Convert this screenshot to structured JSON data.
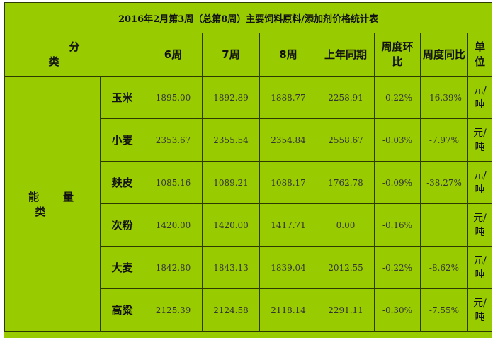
{
  "title": "2016年2月第3周（总第8周）主要饲料原料/添加剂价格统计表",
  "headers": {
    "category": "分类",
    "week6": "6周",
    "week7": "7周",
    "week8": "8周",
    "last_year": "上年同期",
    "wow_line1": "周度环",
    "wow_line2": "比",
    "yoy": "周度同比",
    "unit_line1": "单",
    "unit_line2": "位"
  },
  "group": "能量类",
  "rows": [
    {
      "item": "玉米",
      "w6": "1895.00",
      "w7": "1892.89",
      "w8": "1888.77",
      "last_year": "2258.91",
      "wow": "-0.22%",
      "yoy": "-16.39%",
      "unit_1": "元/",
      "unit_2": "吨"
    },
    {
      "item": "小麦",
      "w6": "2353.67",
      "w7": "2355.54",
      "w8": "2354.84",
      "last_year": "2558.67",
      "wow": "-0.03%",
      "yoy": "-7.97%",
      "unit_1": "元/",
      "unit_2": "吨"
    },
    {
      "item": "麸皮",
      "w6": "1085.16",
      "w7": "1089.21",
      "w8": "1088.17",
      "last_year": "1762.78",
      "wow": "-0.09%",
      "yoy": "-38.27%",
      "unit_1": "元/",
      "unit_2": "吨"
    },
    {
      "item": "次粉",
      "w6": "1420.00",
      "w7": "1420.00",
      "w8": "1417.71",
      "last_year": "0.00",
      "wow": "-0.16%",
      "yoy": "",
      "unit_1": "元/",
      "unit_2": "吨"
    },
    {
      "item": "大麦",
      "w6": "1842.80",
      "w7": "1843.13",
      "w8": "1839.04",
      "last_year": "2012.55",
      "wow": "-0.22%",
      "yoy": "-8.62%",
      "unit_1": "元/",
      "unit_2": "吨"
    },
    {
      "item": "高粱",
      "w6": "2125.39",
      "w7": "2124.58",
      "w8": "2118.14",
      "last_year": "2291.11",
      "wow": "-0.30%",
      "yoy": "-7.55%",
      "unit_1": "元/",
      "unit_2": "吨"
    }
  ]
}
